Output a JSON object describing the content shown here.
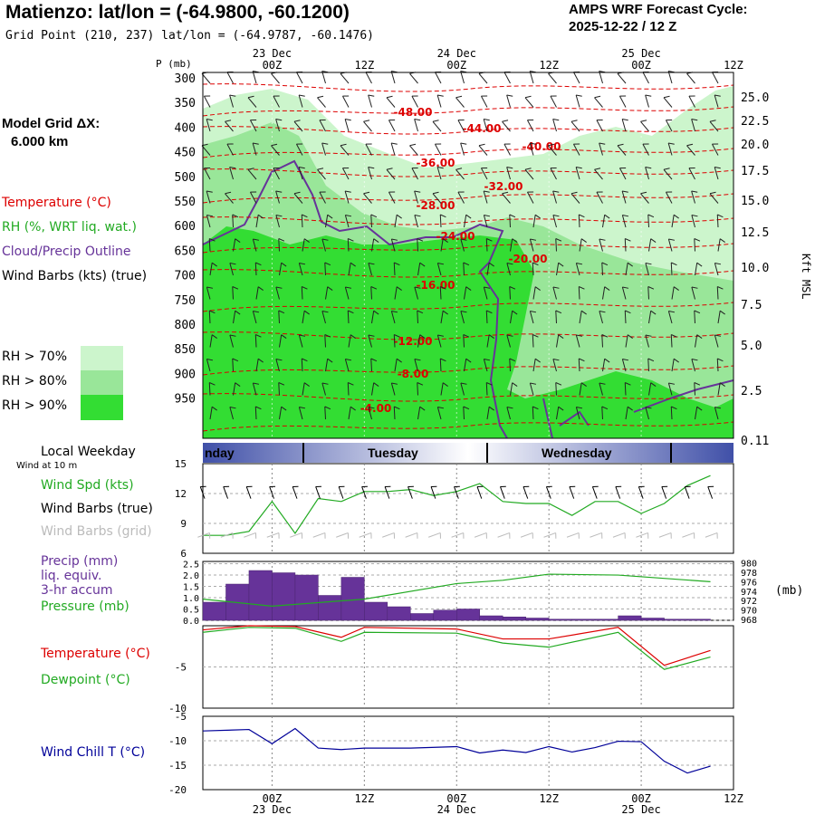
{
  "header": {
    "title": "Matienzo:  lat/lon = (-64.9800, -60.1200)",
    "subtitle": "Grid Point (210, 237) lat/lon = (-64.9787, -60.1476)",
    "cycle_line1": "AMPS WRF Forecast Cycle:",
    "cycle_line2": "2025-12-22 / 12  Z"
  },
  "sidebar": {
    "grid_line1": "Model Grid ΔX:",
    "grid_line2": "6.000 km",
    "legend": [
      {
        "text": "Temperature (°C)",
        "color": "#dd0000"
      },
      {
        "text": "RH (%, WRT liq. wat.)",
        "color": "#22aa22"
      },
      {
        "text": "Cloud/Precip Outline",
        "color": "#663399"
      },
      {
        "text": "Wind Barbs (kts) (true)",
        "color": "#000000"
      }
    ],
    "rh_legend": [
      {
        "text": "RH > 70%",
        "color": "#ccf5cc"
      },
      {
        "text": "RH > 80%",
        "color": "#99e699"
      },
      {
        "text": "RH > 90%",
        "color": "#33dd33"
      }
    ]
  },
  "time_axis": {
    "date_top": [
      "23 Dec",
      "24 Dec",
      "25 Dec"
    ],
    "hours": [
      "00Z",
      "12Z",
      "00Z",
      "12Z",
      "00Z",
      "12Z"
    ],
    "date_bottom": [
      "23 Dec",
      "24 Dec",
      "25 Dec"
    ]
  },
  "weekday_bar": {
    "label": "Local Weekday",
    "days": [
      "nday",
      "Tuesday",
      "Wednesday"
    ]
  },
  "wind_note": "Wind at 10 m",
  "chart_data": [
    {
      "type": "heatmap",
      "name": "cross-section",
      "ylabel": "P (mb)",
      "y2label": "Kft MSL",
      "pressure_ticks": [
        "300",
        "350",
        "400",
        "450",
        "500",
        "550",
        "600",
        "650",
        "700",
        "750",
        "800",
        "850",
        "900",
        "950"
      ],
      "kft_ticks": [
        "25.0",
        "22.5",
        "20.0",
        "17.5",
        "15.0",
        "12.5",
        "10.0",
        "7.5",
        "5.0",
        "2.5",
        "0.11"
      ],
      "temperature_contours": [
        "-48.00",
        "-44.00",
        "-40.00",
        "-36.00",
        "-32.00",
        "-28.00",
        "-24.00",
        "-20.00",
        "-16.00",
        "-12.00",
        "-8.00",
        "-4.00"
      ]
    },
    {
      "type": "line",
      "name": "wind",
      "labels": [
        "Wind Spd (kts)",
        "Wind Barbs (true)",
        "Wind Barbs (grid)"
      ],
      "ylim": [
        6,
        15
      ],
      "yticks": [
        "15",
        "12",
        "9",
        "6"
      ],
      "x_hours": [
        -9,
        -6,
        -3,
        0,
        3,
        6,
        9,
        12,
        15,
        18,
        21,
        24,
        27,
        30,
        33,
        36,
        39,
        42,
        45,
        48,
        51,
        54,
        57
      ],
      "wind_speed": [
        7.8,
        7.8,
        8.2,
        11.2,
        8.0,
        11.5,
        11.2,
        12.2,
        12.2,
        12.4,
        11.8,
        12.2,
        13.0,
        11.2,
        11.0,
        11.0,
        9.8,
        11.2,
        11.2,
        10.0,
        11.0,
        12.8,
        13.8
      ]
    },
    {
      "type": "bar",
      "name": "precip-pressure",
      "labels": [
        "Precip (mm)",
        "liq. equiv.",
        "3-hr accum",
        "Pressure (mb)"
      ],
      "y2label": "(mb)",
      "yticks": [
        "2.5",
        "2.0",
        "1.5",
        "1.0",
        "0.5",
        "0.0"
      ],
      "y2ticks": [
        "980",
        "978",
        "976",
        "974",
        "972",
        "970",
        "968"
      ],
      "precip_hours": [
        -7.5,
        -4.5,
        -1.5,
        1.5,
        4.5,
        7.5,
        10.5,
        13.5,
        16.5,
        19.5,
        22.5,
        25.5,
        28.5,
        31.5,
        34.5,
        37.5,
        40.5,
        43.5,
        46.5,
        49.5,
        52.5,
        55.5
      ],
      "precip": [
        0.8,
        1.6,
        2.2,
        2.1,
        2.0,
        1.1,
        1.9,
        0.8,
        0.6,
        0.3,
        0.45,
        0.5,
        0.2,
        0.15,
        0.1,
        0.05,
        0.05,
        0.05,
        0.2,
        0.1,
        0.05,
        0.05
      ],
      "pressure_hours": [
        -9,
        0,
        12,
        24,
        30,
        36,
        45,
        57
      ],
      "pressure": [
        972.5,
        971,
        972.5,
        975.8,
        976.5,
        977.8,
        977.6,
        976.2
      ]
    },
    {
      "type": "line",
      "name": "temperature-dewpoint",
      "labels": [
        "Temperature (°C)",
        "Dewpoint (°C)"
      ],
      "ylim": [
        -10,
        0
      ],
      "yticks": [
        "-5",
        "-10"
      ],
      "x_hours": [
        -9,
        -3,
        3,
        9,
        12,
        24,
        30,
        36,
        45,
        51,
        57
      ],
      "temperature": [
        -0.5,
        0,
        -0.1,
        -1.4,
        -0.2,
        -0.4,
        -1.6,
        -1.6,
        -0.2,
        -4.8,
        -3.0
      ],
      "dewpoint": [
        -0.8,
        -0.2,
        -0.3,
        -1.9,
        -0.8,
        -0.9,
        -2.1,
        -2.6,
        -0.8,
        -5.3,
        -3.8
      ]
    },
    {
      "type": "line",
      "name": "wind-chill",
      "labels": [
        "Wind Chill T (°C)"
      ],
      "ylim": [
        -20,
        -5
      ],
      "yticks": [
        "-5",
        "-10",
        "-15",
        "-20"
      ],
      "x_hours": [
        -9,
        -3,
        0,
        3,
        6,
        9,
        12,
        18,
        24,
        27,
        30,
        33,
        36,
        39,
        42,
        45,
        48,
        51,
        54,
        57
      ],
      "wind_chill": [
        -8,
        -7.7,
        -10.6,
        -7.5,
        -11.5,
        -11.8,
        -11.5,
        -11.5,
        -11.2,
        -12.5,
        -11.9,
        -12.4,
        -11.2,
        -12.3,
        -11.4,
        -10.1,
        -10.2,
        -14.2,
        -16.6,
        -15.2
      ]
    }
  ]
}
